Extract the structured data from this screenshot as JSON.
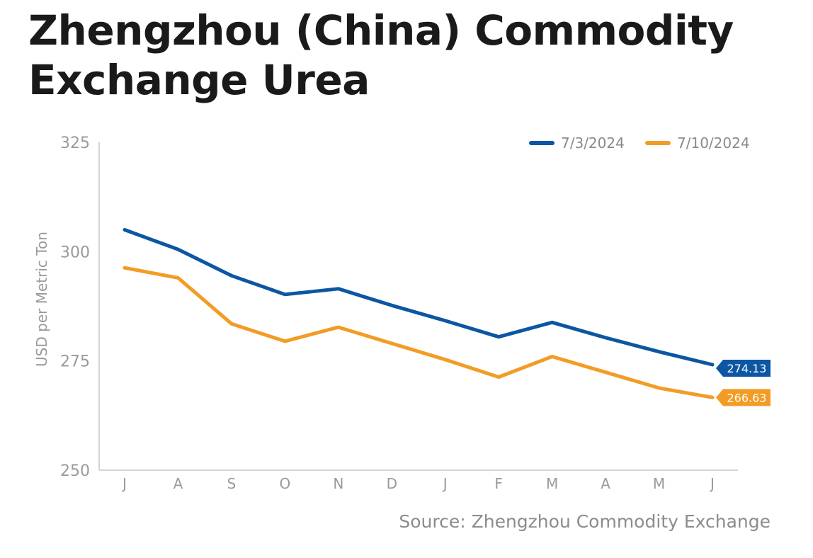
{
  "title": "Zhengzhou (China) Commodity Exchange Urea",
  "source": "Source: Zhengzhou Commodity Exchange",
  "colors": {
    "series_1": "#0c56a3",
    "series_2": "#f39c25",
    "axis": "#d4d4d4",
    "tick_text": "#9a9a9a",
    "legend_text": "#8a8a8a"
  },
  "chart_data": {
    "type": "line",
    "categories": [
      "J",
      "A",
      "S",
      "O",
      "N",
      "D",
      "J",
      "F",
      "M",
      "A",
      "M",
      "J"
    ],
    "ylabel": "USD per Metric Ton",
    "ylim": [
      250,
      325
    ],
    "yticks": [
      250,
      275,
      300,
      325
    ],
    "grid": false,
    "legend_position": "top-right",
    "series": [
      {
        "name": "7/3/2024",
        "values": [
          305,
          300.5,
          294.5,
          290.2,
          291.5,
          287.7,
          284.2,
          280.5,
          283.8,
          280.3,
          277.1,
          274.13
        ],
        "end_label": "274.13"
      },
      {
        "name": "7/10/2024",
        "values": [
          296.3,
          294,
          283.5,
          279.5,
          282.7,
          279,
          275.3,
          271.3,
          276,
          272.4,
          268.8,
          266.63
        ],
        "end_label": "266.63"
      }
    ]
  }
}
